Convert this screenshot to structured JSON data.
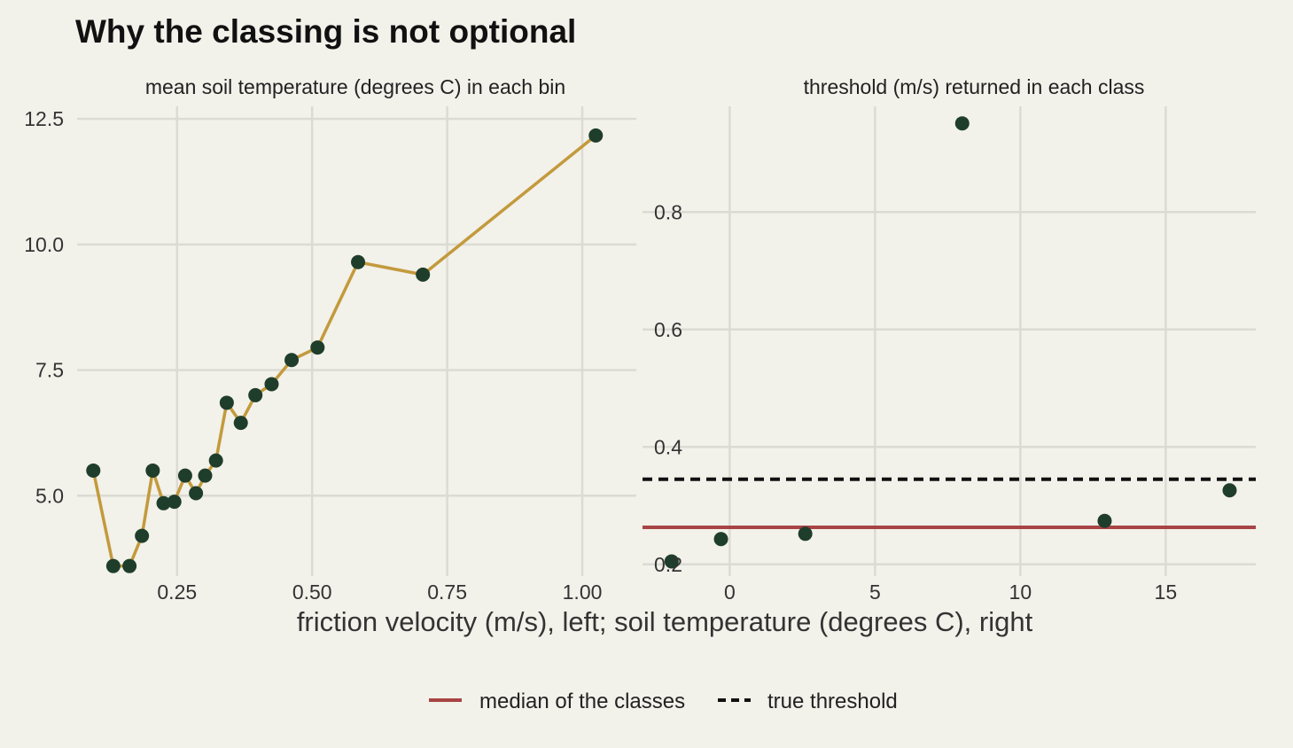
{
  "title": "Why the classing is not optional",
  "xlabel": "friction velocity (m/s), left; soil temperature (degrees C), right",
  "colors": {
    "background": "#f2f1ea",
    "grid": "#dcdbd3",
    "point": "#1f3d2b",
    "line": "#c39a3c",
    "median": "#a84444",
    "true_threshold": "#111111"
  },
  "legend": {
    "position": "bottom",
    "items": [
      {
        "label": "median of the classes",
        "style": "solid",
        "color": "#a84444"
      },
      {
        "label": "true threshold",
        "style": "dashed",
        "color": "#111111"
      }
    ]
  },
  "chart_data": [
    {
      "type": "line",
      "title": "mean soil temperature (degrees C) in each bin",
      "xlabel": "",
      "ylabel": "",
      "xlim": [
        0.065,
        1.1
      ],
      "ylim": [
        3.4,
        12.75
      ],
      "xticks": [
        0.25,
        0.5,
        0.75,
        1.0
      ],
      "xtick_labels": [
        "0.25",
        "0.50",
        "0.75",
        "1.00"
      ],
      "yticks": [
        5.0,
        7.5,
        10.0,
        12.5
      ],
      "ytick_labels": [
        "5.0",
        "7.5",
        "10.0",
        "12.5"
      ],
      "grid": true,
      "series": [
        {
          "x": [
            0.095,
            0.132,
            0.162,
            0.185,
            0.205,
            0.225,
            0.245,
            0.265,
            0.285,
            0.302,
            0.322,
            0.342,
            0.368,
            0.395,
            0.425,
            0.462,
            0.51,
            0.585,
            0.705,
            1.025
          ],
          "y": [
            5.5,
            3.6,
            3.6,
            4.2,
            5.5,
            4.85,
            4.88,
            5.4,
            5.05,
            5.4,
            5.7,
            6.85,
            6.45,
            7.0,
            7.22,
            7.7,
            7.95,
            9.65,
            9.4,
            12.17
          ]
        }
      ]
    },
    {
      "type": "scatter",
      "title": "threshold (m/s) returned in each class",
      "xlabel": "",
      "ylabel": "",
      "xlim": [
        -3,
        18.1
      ],
      "ylim": [
        0.18,
        0.98
      ],
      "xticks": [
        0,
        5,
        10,
        15
      ],
      "xtick_labels": [
        "0",
        "5",
        "10",
        "15"
      ],
      "yticks": [
        0.2,
        0.4,
        0.6,
        0.8
      ],
      "ytick_labels": [
        "0.2",
        "0.4",
        "0.6",
        "0.8"
      ],
      "grid": true,
      "series": [
        {
          "x": [
            -2.0,
            -0.3,
            2.6,
            8.0,
            12.9,
            17.2
          ],
          "y": [
            0.205,
            0.243,
            0.252,
            0.951,
            0.274,
            0.326
          ]
        }
      ],
      "hlines": [
        {
          "name": "median of the classes",
          "y": 0.263,
          "style": "solid"
        },
        {
          "name": "true threshold",
          "y": 0.345,
          "style": "dashed"
        }
      ]
    }
  ]
}
